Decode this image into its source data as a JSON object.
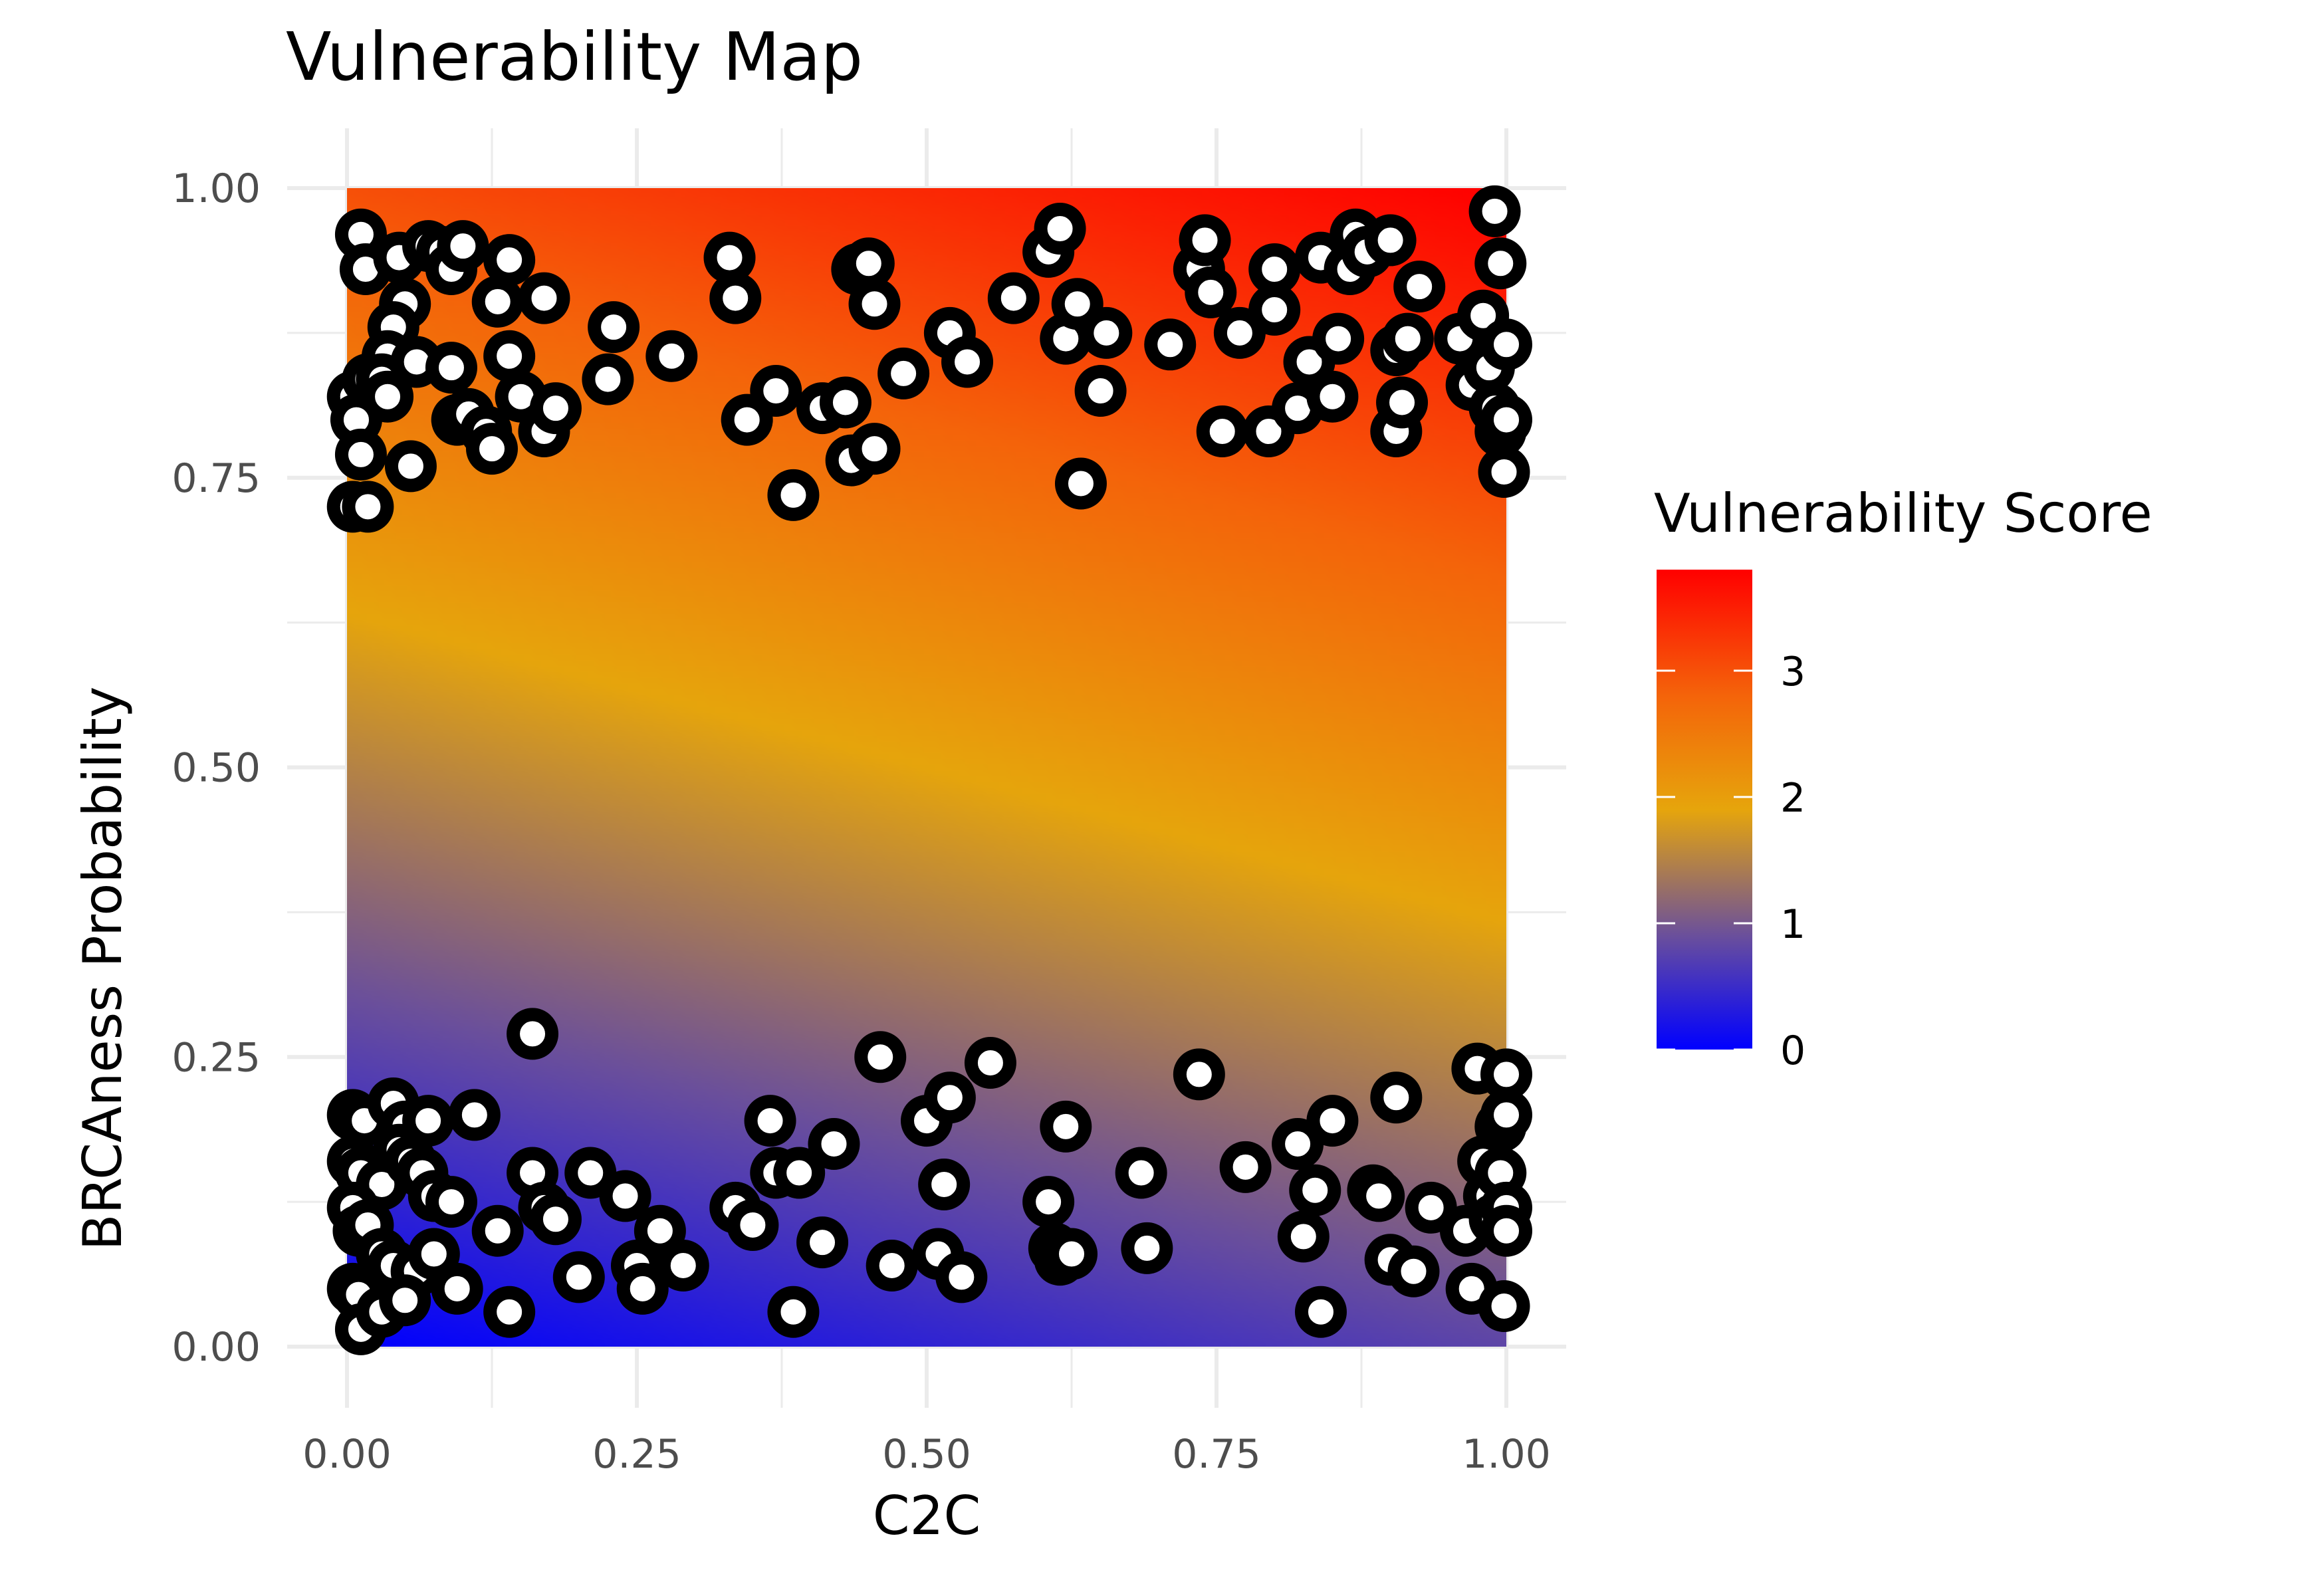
{
  "chart_data": {
    "type": "scatter",
    "title": "Vulnerability Map",
    "xlabel": "C2C",
    "ylabel": "BRCAness Probability",
    "xlim": [
      0,
      1
    ],
    "ylim": [
      0,
      1
    ],
    "x_ticks": [
      "0.00",
      "0.25",
      "0.50",
      "0.75",
      "1.00"
    ],
    "y_ticks": [
      "0.00",
      "0.25",
      "0.50",
      "0.75",
      "1.00"
    ],
    "grid": true,
    "background_fill": {
      "description": "gradient of vulnerability score over C2C and BRCAness Probability",
      "score_range": [
        0,
        3.8
      ]
    },
    "legend": {
      "title": "Vulnerability Score",
      "placement": "right",
      "labels": [
        "0",
        "1",
        "2",
        "3"
      ],
      "label_values": [
        0,
        1,
        2,
        3
      ],
      "score_range": [
        0,
        3.8
      ],
      "colors": [
        {
          "value": 0,
          "color": "#0000ff"
        },
        {
          "value": 0.9,
          "color": "#6a4f9c"
        },
        {
          "value": 1.9,
          "color": "#e6a50c"
        },
        {
          "value": 2.8,
          "color": "#f4640a"
        },
        {
          "value": 3.8,
          "color": "#ff0000"
        }
      ]
    },
    "point_style": {
      "fill": "#ffffff",
      "stroke": "#000000"
    },
    "series": [
      {
        "points": [
          [
            0.012,
            0.96
          ],
          [
            0.016,
            0.93
          ],
          [
            0.045,
            0.94
          ],
          [
            0.07,
            0.95
          ],
          [
            0.082,
            0.945
          ],
          [
            0.09,
            0.93
          ],
          [
            0.1,
            0.95
          ],
          [
            0.14,
            0.938
          ],
          [
            0.13,
            0.902
          ],
          [
            0.17,
            0.905
          ],
          [
            0.05,
            0.9
          ],
          [
            0.04,
            0.88
          ],
          [
            0.035,
            0.855
          ],
          [
            0.005,
            0.82
          ],
          [
            0.008,
            0.8
          ],
          [
            0.012,
            0.77
          ],
          [
            0.018,
            0.835
          ],
          [
            0.03,
            0.835
          ],
          [
            0.035,
            0.82
          ],
          [
            0.06,
            0.85
          ],
          [
            0.09,
            0.845
          ],
          [
            0.095,
            0.8
          ],
          [
            0.105,
            0.805
          ],
          [
            0.12,
            0.79
          ],
          [
            0.125,
            0.775
          ],
          [
            0.14,
            0.855
          ],
          [
            0.15,
            0.82
          ],
          [
            0.17,
            0.79
          ],
          [
            0.18,
            0.81
          ],
          [
            0.225,
            0.835
          ],
          [
            0.23,
            0.88
          ],
          [
            0.28,
            0.855
          ],
          [
            0.005,
            0.725
          ],
          [
            0.018,
            0.725
          ],
          [
            0.055,
            0.76
          ],
          [
            0.33,
            0.94
          ],
          [
            0.335,
            0.905
          ],
          [
            0.345,
            0.8
          ],
          [
            0.37,
            0.825
          ],
          [
            0.385,
            0.735
          ],
          [
            0.41,
            0.81
          ],
          [
            0.43,
            0.815
          ],
          [
            0.435,
            0.765
          ],
          [
            0.44,
            0.93
          ],
          [
            0.45,
            0.935
          ],
          [
            0.455,
            0.9
          ],
          [
            0.455,
            0.775
          ],
          [
            0.48,
            0.84
          ],
          [
            0.52,
            0.875
          ],
          [
            0.535,
            0.85
          ],
          [
            0.575,
            0.905
          ],
          [
            0.605,
            0.945
          ],
          [
            0.615,
            0.965
          ],
          [
            0.62,
            0.87
          ],
          [
            0.63,
            0.9
          ],
          [
            0.633,
            0.745
          ],
          [
            0.65,
            0.825
          ],
          [
            0.655,
            0.875
          ],
          [
            0.71,
            0.865
          ],
          [
            0.735,
            0.93
          ],
          [
            0.74,
            0.955
          ],
          [
            0.745,
            0.91
          ],
          [
            0.755,
            0.79
          ],
          [
            0.77,
            0.875
          ],
          [
            0.795,
            0.79
          ],
          [
            0.8,
            0.93
          ],
          [
            0.8,
            0.895
          ],
          [
            0.82,
            0.81
          ],
          [
            0.83,
            0.85
          ],
          [
            0.84,
            0.94
          ],
          [
            0.85,
            0.82
          ],
          [
            0.855,
            0.87
          ],
          [
            0.865,
            0.93
          ],
          [
            0.87,
            0.96
          ],
          [
            0.88,
            0.945
          ],
          [
            0.9,
            0.955
          ],
          [
            0.905,
            0.79
          ],
          [
            0.91,
            0.815
          ],
          [
            0.905,
            0.86
          ],
          [
            0.915,
            0.87
          ],
          [
            0.925,
            0.915
          ],
          [
            0.96,
            0.87
          ],
          [
            0.97,
            0.83
          ],
          [
            0.98,
            0.89
          ],
          [
            0.985,
            0.845
          ],
          [
            0.99,
            0.98
          ],
          [
            0.995,
            0.935
          ],
          [
            1.0,
            0.865
          ],
          [
            0.99,
            0.81
          ],
          [
            0.995,
            0.79
          ],
          [
            0.998,
            0.755
          ],
          [
            1.0,
            0.8
          ],
          [
            0.005,
            0.2
          ],
          [
            0.015,
            0.195
          ],
          [
            0.04,
            0.21
          ],
          [
            0.05,
            0.19
          ],
          [
            0.07,
            0.195
          ],
          [
            0.11,
            0.2
          ],
          [
            0.16,
            0.27
          ],
          [
            0.005,
            0.16
          ],
          [
            0.012,
            0.15
          ],
          [
            0.03,
            0.14
          ],
          [
            0.045,
            0.17
          ],
          [
            0.055,
            0.16
          ],
          [
            0.065,
            0.15
          ],
          [
            0.075,
            0.13
          ],
          [
            0.09,
            0.125
          ],
          [
            0.005,
            0.12
          ],
          [
            0.01,
            0.1
          ],
          [
            0.018,
            0.105
          ],
          [
            0.03,
            0.08
          ],
          [
            0.04,
            0.07
          ],
          [
            0.06,
            0.065
          ],
          [
            0.075,
            0.08
          ],
          [
            0.005,
            0.05
          ],
          [
            0.01,
            0.045
          ],
          [
            0.012,
            0.015
          ],
          [
            0.03,
            0.03
          ],
          [
            0.05,
            0.04
          ],
          [
            0.095,
            0.05
          ],
          [
            0.13,
            0.1
          ],
          [
            0.14,
            0.03
          ],
          [
            0.16,
            0.15
          ],
          [
            0.17,
            0.12
          ],
          [
            0.18,
            0.11
          ],
          [
            0.2,
            0.06
          ],
          [
            0.21,
            0.15
          ],
          [
            0.24,
            0.13
          ],
          [
            0.25,
            0.07
          ],
          [
            0.255,
            0.05
          ],
          [
            0.27,
            0.1
          ],
          [
            0.29,
            0.07
          ],
          [
            0.335,
            0.12
          ],
          [
            0.35,
            0.105
          ],
          [
            0.365,
            0.195
          ],
          [
            0.37,
            0.15
          ],
          [
            0.39,
            0.15
          ],
          [
            0.385,
            0.03
          ],
          [
            0.41,
            0.09
          ],
          [
            0.42,
            0.175
          ],
          [
            0.46,
            0.25
          ],
          [
            0.47,
            0.07
          ],
          [
            0.5,
            0.195
          ],
          [
            0.51,
            0.08
          ],
          [
            0.52,
            0.215
          ],
          [
            0.515,
            0.14
          ],
          [
            0.53,
            0.06
          ],
          [
            0.555,
            0.245
          ],
          [
            0.605,
            0.125
          ],
          [
            0.61,
            0.085
          ],
          [
            0.615,
            0.075
          ],
          [
            0.62,
            0.19
          ],
          [
            0.625,
            0.08
          ],
          [
            0.685,
            0.15
          ],
          [
            0.69,
            0.085
          ],
          [
            0.735,
            0.235
          ],
          [
            0.775,
            0.155
          ],
          [
            0.82,
            0.175
          ],
          [
            0.825,
            0.095
          ],
          [
            0.835,
            0.135
          ],
          [
            0.84,
            0.03
          ],
          [
            0.85,
            0.195
          ],
          [
            0.885,
            0.135
          ],
          [
            0.89,
            0.13
          ],
          [
            0.9,
            0.075
          ],
          [
            0.905,
            0.215
          ],
          [
            0.92,
            0.065
          ],
          [
            0.935,
            0.12
          ],
          [
            0.965,
            0.1
          ],
          [
            0.97,
            0.05
          ],
          [
            0.975,
            0.24
          ],
          [
            0.98,
            0.16
          ],
          [
            0.985,
            0.13
          ],
          [
            0.99,
            0.11
          ],
          [
            0.995,
            0.19
          ],
          [
            1.0,
            0.235
          ],
          [
            1.0,
            0.2
          ],
          [
            0.995,
            0.15
          ],
          [
            1.0,
            0.12
          ],
          [
            1.0,
            0.1
          ],
          [
            0.998,
            0.035
          ]
        ]
      }
    ]
  }
}
